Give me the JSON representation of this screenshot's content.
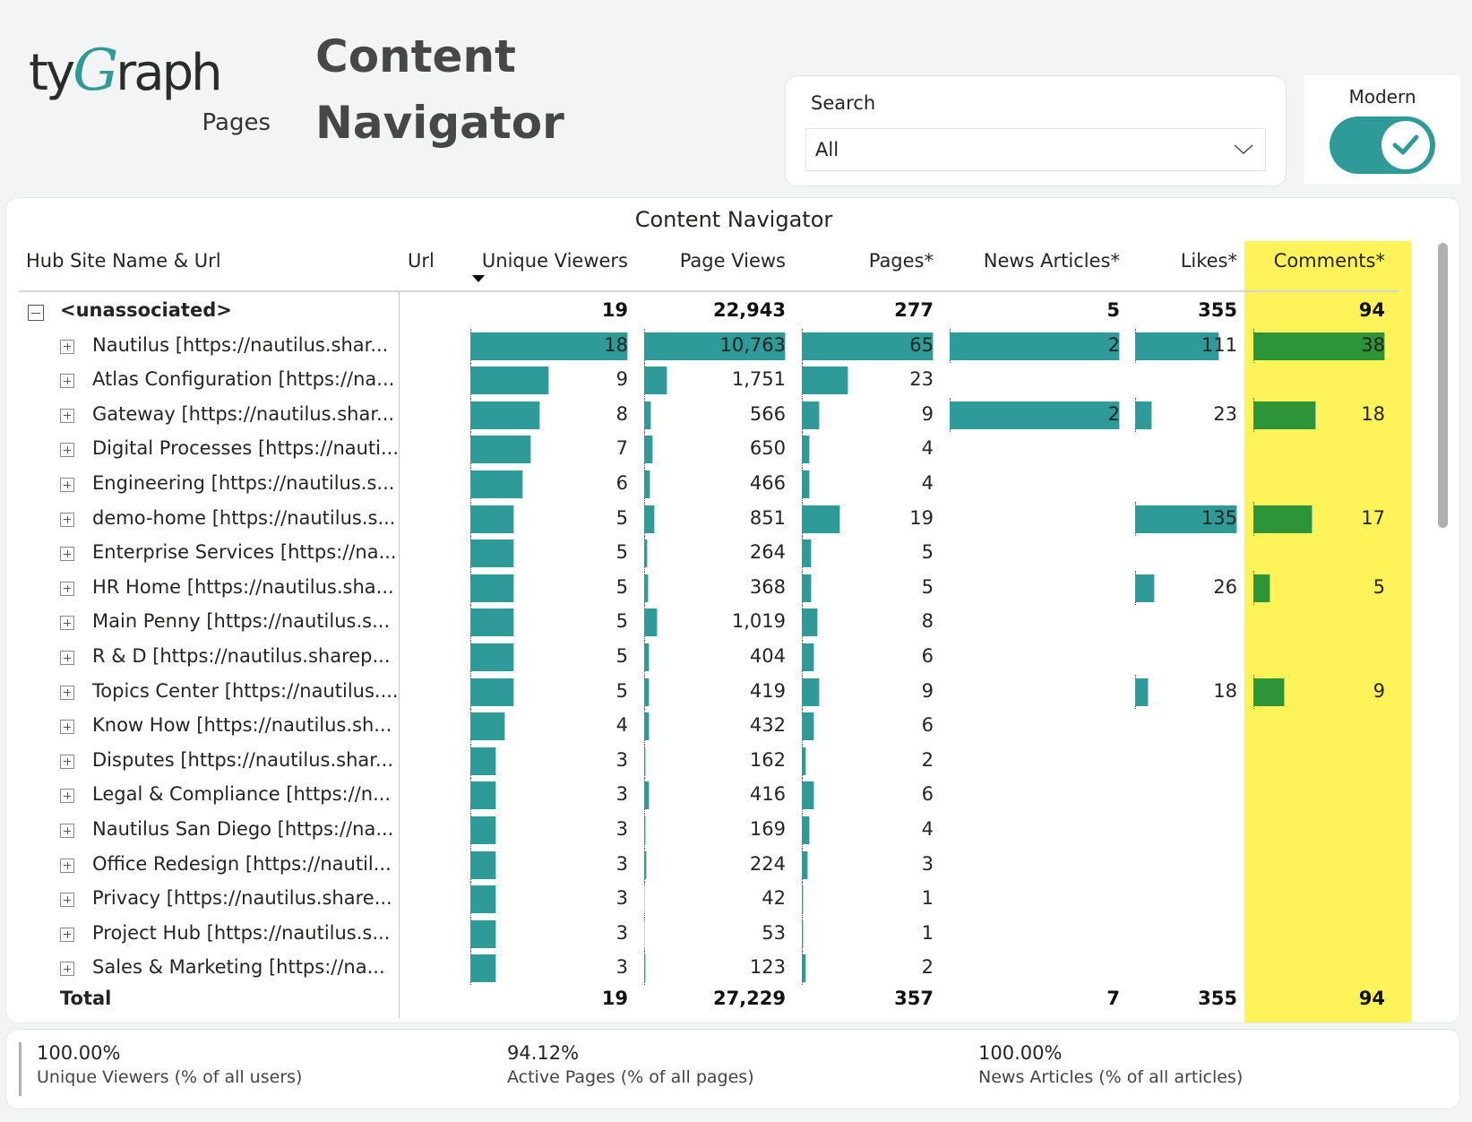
{
  "logo": {
    "brand_prefix": "ty",
    "brand_g": "G",
    "brand_suffix": "raph",
    "product": "Pages"
  },
  "header": {
    "title_line1": "Content",
    "title_line2": "Navigator"
  },
  "search": {
    "label": "Search",
    "value": "All",
    "icon": "chevron-down-icon"
  },
  "mode_toggle": {
    "label": "Modern",
    "checked": true,
    "icon": "checkmark-icon"
  },
  "colors": {
    "accent_teal": "#2e9b98",
    "comments_bar_green": "#2e9438",
    "highlight_yellow": "#fff35a"
  },
  "table": {
    "title": "Content Navigator",
    "sort": {
      "column": "Unique Viewers",
      "direction": "descending"
    },
    "columns": [
      "Hub Site Name & Url",
      "Url",
      "Unique Viewers",
      "Page Views",
      "Pages*",
      "News Articles*",
      "Likes*",
      "Comments*"
    ],
    "group": {
      "name": "<unassociated>",
      "expanded": true,
      "unique_viewers": "19",
      "page_views": "22,943",
      "pages": "277",
      "news_articles": "5",
      "likes": "355",
      "comments": "94"
    },
    "rows": [
      {
        "name": "Nautilus [https://nautilus.shar...",
        "uv": 18,
        "uv_t": "18",
        "pv": 10763,
        "pv_t": "10,763",
        "pg": 65,
        "pg_t": "65",
        "na": 2,
        "na_t": "2",
        "lk": 111,
        "lk_t": "111",
        "cm": 38,
        "cm_t": "38"
      },
      {
        "name": "Atlas Configuration [https://na...",
        "uv": 9,
        "uv_t": "9",
        "pv": 1751,
        "pv_t": "1,751",
        "pg": 23,
        "pg_t": "23",
        "na": null,
        "na_t": "",
        "lk": null,
        "lk_t": "",
        "cm": null,
        "cm_t": ""
      },
      {
        "name": "Gateway [https://nautilus.shar...",
        "uv": 8,
        "uv_t": "8",
        "pv": 566,
        "pv_t": "566",
        "pg": 9,
        "pg_t": "9",
        "na": 2,
        "na_t": "2",
        "lk": 23,
        "lk_t": "23",
        "cm": 18,
        "cm_t": "18"
      },
      {
        "name": "Digital Processes [https://nauti...",
        "uv": 7,
        "uv_t": "7",
        "pv": 650,
        "pv_t": "650",
        "pg": 4,
        "pg_t": "4",
        "na": null,
        "na_t": "",
        "lk": null,
        "lk_t": "",
        "cm": null,
        "cm_t": ""
      },
      {
        "name": "Engineering [https://nautilus.s...",
        "uv": 6,
        "uv_t": "6",
        "pv": 466,
        "pv_t": "466",
        "pg": 4,
        "pg_t": "4",
        "na": null,
        "na_t": "",
        "lk": null,
        "lk_t": "",
        "cm": null,
        "cm_t": ""
      },
      {
        "name": "demo-home [https://nautilus.s...",
        "uv": 5,
        "uv_t": "5",
        "pv": 851,
        "pv_t": "851",
        "pg": 19,
        "pg_t": "19",
        "na": null,
        "na_t": "",
        "lk": 135,
        "lk_t": "135",
        "cm": 17,
        "cm_t": "17"
      },
      {
        "name": "Enterprise Services [https://na...",
        "uv": 5,
        "uv_t": "5",
        "pv": 264,
        "pv_t": "264",
        "pg": 5,
        "pg_t": "5",
        "na": null,
        "na_t": "",
        "lk": null,
        "lk_t": "",
        "cm": null,
        "cm_t": ""
      },
      {
        "name": "HR Home [https://nautilus.sha...",
        "uv": 5,
        "uv_t": "5",
        "pv": 368,
        "pv_t": "368",
        "pg": 5,
        "pg_t": "5",
        "na": null,
        "na_t": "",
        "lk": 26,
        "lk_t": "26",
        "cm": 5,
        "cm_t": "5"
      },
      {
        "name": "Main Penny [https://nautilus.s...",
        "uv": 5,
        "uv_t": "5",
        "pv": 1019,
        "pv_t": "1,019",
        "pg": 8,
        "pg_t": "8",
        "na": null,
        "na_t": "",
        "lk": null,
        "lk_t": "",
        "cm": null,
        "cm_t": ""
      },
      {
        "name": "R & D [https://nautilus.sharep...",
        "uv": 5,
        "uv_t": "5",
        "pv": 404,
        "pv_t": "404",
        "pg": 6,
        "pg_t": "6",
        "na": null,
        "na_t": "",
        "lk": null,
        "lk_t": "",
        "cm": null,
        "cm_t": ""
      },
      {
        "name": "Topics Center [https://nautilus....",
        "uv": 5,
        "uv_t": "5",
        "pv": 419,
        "pv_t": "419",
        "pg": 9,
        "pg_t": "9",
        "na": null,
        "na_t": "",
        "lk": 18,
        "lk_t": "18",
        "cm": 9,
        "cm_t": "9"
      },
      {
        "name": "Know How [https://nautilus.sh...",
        "uv": 4,
        "uv_t": "4",
        "pv": 432,
        "pv_t": "432",
        "pg": 6,
        "pg_t": "6",
        "na": null,
        "na_t": "",
        "lk": null,
        "lk_t": "",
        "cm": null,
        "cm_t": ""
      },
      {
        "name": "Disputes [https://nautilus.shar...",
        "uv": 3,
        "uv_t": "3",
        "pv": 162,
        "pv_t": "162",
        "pg": 2,
        "pg_t": "2",
        "na": null,
        "na_t": "",
        "lk": null,
        "lk_t": "",
        "cm": null,
        "cm_t": ""
      },
      {
        "name": "Legal & Compliance [https://n...",
        "uv": 3,
        "uv_t": "3",
        "pv": 416,
        "pv_t": "416",
        "pg": 6,
        "pg_t": "6",
        "na": null,
        "na_t": "",
        "lk": null,
        "lk_t": "",
        "cm": null,
        "cm_t": ""
      },
      {
        "name": "Nautilus San Diego [https://na...",
        "uv": 3,
        "uv_t": "3",
        "pv": 169,
        "pv_t": "169",
        "pg": 4,
        "pg_t": "4",
        "na": null,
        "na_t": "",
        "lk": null,
        "lk_t": "",
        "cm": null,
        "cm_t": ""
      },
      {
        "name": "Office Redesign [https://nautil...",
        "uv": 3,
        "uv_t": "3",
        "pv": 224,
        "pv_t": "224",
        "pg": 3,
        "pg_t": "3",
        "na": null,
        "na_t": "",
        "lk": null,
        "lk_t": "",
        "cm": null,
        "cm_t": ""
      },
      {
        "name": "Privacy [https://nautilus.share...",
        "uv": 3,
        "uv_t": "3",
        "pv": 42,
        "pv_t": "42",
        "pg": 1,
        "pg_t": "1",
        "na": null,
        "na_t": "",
        "lk": null,
        "lk_t": "",
        "cm": null,
        "cm_t": ""
      },
      {
        "name": "Project Hub [https://nautilus.s...",
        "uv": 3,
        "uv_t": "3",
        "pv": 53,
        "pv_t": "53",
        "pg": 1,
        "pg_t": "1",
        "na": null,
        "na_t": "",
        "lk": null,
        "lk_t": "",
        "cm": null,
        "cm_t": ""
      },
      {
        "name": "Sales & Marketing [https://na...",
        "uv": 3,
        "uv_t": "3",
        "pv": 123,
        "pv_t": "123",
        "pg": 2,
        "pg_t": "2",
        "na": null,
        "na_t": "",
        "lk": null,
        "lk_t": "",
        "cm": null,
        "cm_t": ""
      }
    ],
    "bar_scale_max": {
      "uv": 18,
      "pv": 10763,
      "pg": 65,
      "na": 2,
      "lk": 135,
      "cm": 38
    },
    "total": {
      "label": "Total",
      "unique_viewers": "19",
      "page_views": "27,229",
      "pages": "357",
      "news_articles": "7",
      "likes": "355",
      "comments": "94"
    }
  },
  "kpis": [
    {
      "value": "100.00%",
      "label": "Unique Viewers (% of all users)"
    },
    {
      "value": "94.12%",
      "label": "Active Pages (% of all pages)"
    },
    {
      "value": "100.00%",
      "label": "News Articles (% of all articles)"
    }
  ]
}
